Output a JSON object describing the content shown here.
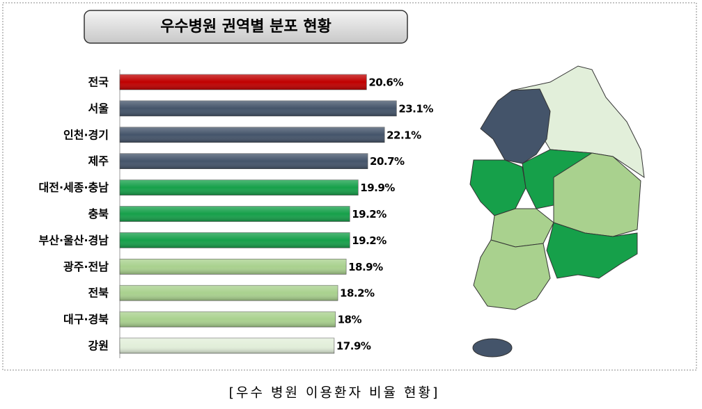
{
  "chart_data": {
    "type": "bar",
    "orientation": "horizontal",
    "title": "우수병원 권역별 분포 현황",
    "caption": "[우수 병원 이용환자 비율 현황]",
    "categories": [
      "전국",
      "서울",
      "인천·경기",
      "제주",
      "대전·세종·충남",
      "충북",
      "부산·울산·경남",
      "광주·전남",
      "전북",
      "대구·경북",
      "강원"
    ],
    "values": [
      20.6,
      23.1,
      22.1,
      20.7,
      19.9,
      19.2,
      19.2,
      18.9,
      18.2,
      18,
      17.9
    ],
    "value_labels": [
      "20.6%",
      "23.1%",
      "22.1%",
      "20.7%",
      "19.9%",
      "19.2%",
      "19.2%",
      "18.9%",
      "18.2%",
      "18%",
      "17.9%"
    ],
    "colors": [
      "#c00000",
      "#44546a",
      "#44546a",
      "#44546a",
      "#16a04a",
      "#16a04a",
      "#16a04a",
      "#a9d18e",
      "#a9d18e",
      "#a9d18e",
      "#e2efda"
    ],
    "xlim": [
      0,
      27
    ]
  }
}
